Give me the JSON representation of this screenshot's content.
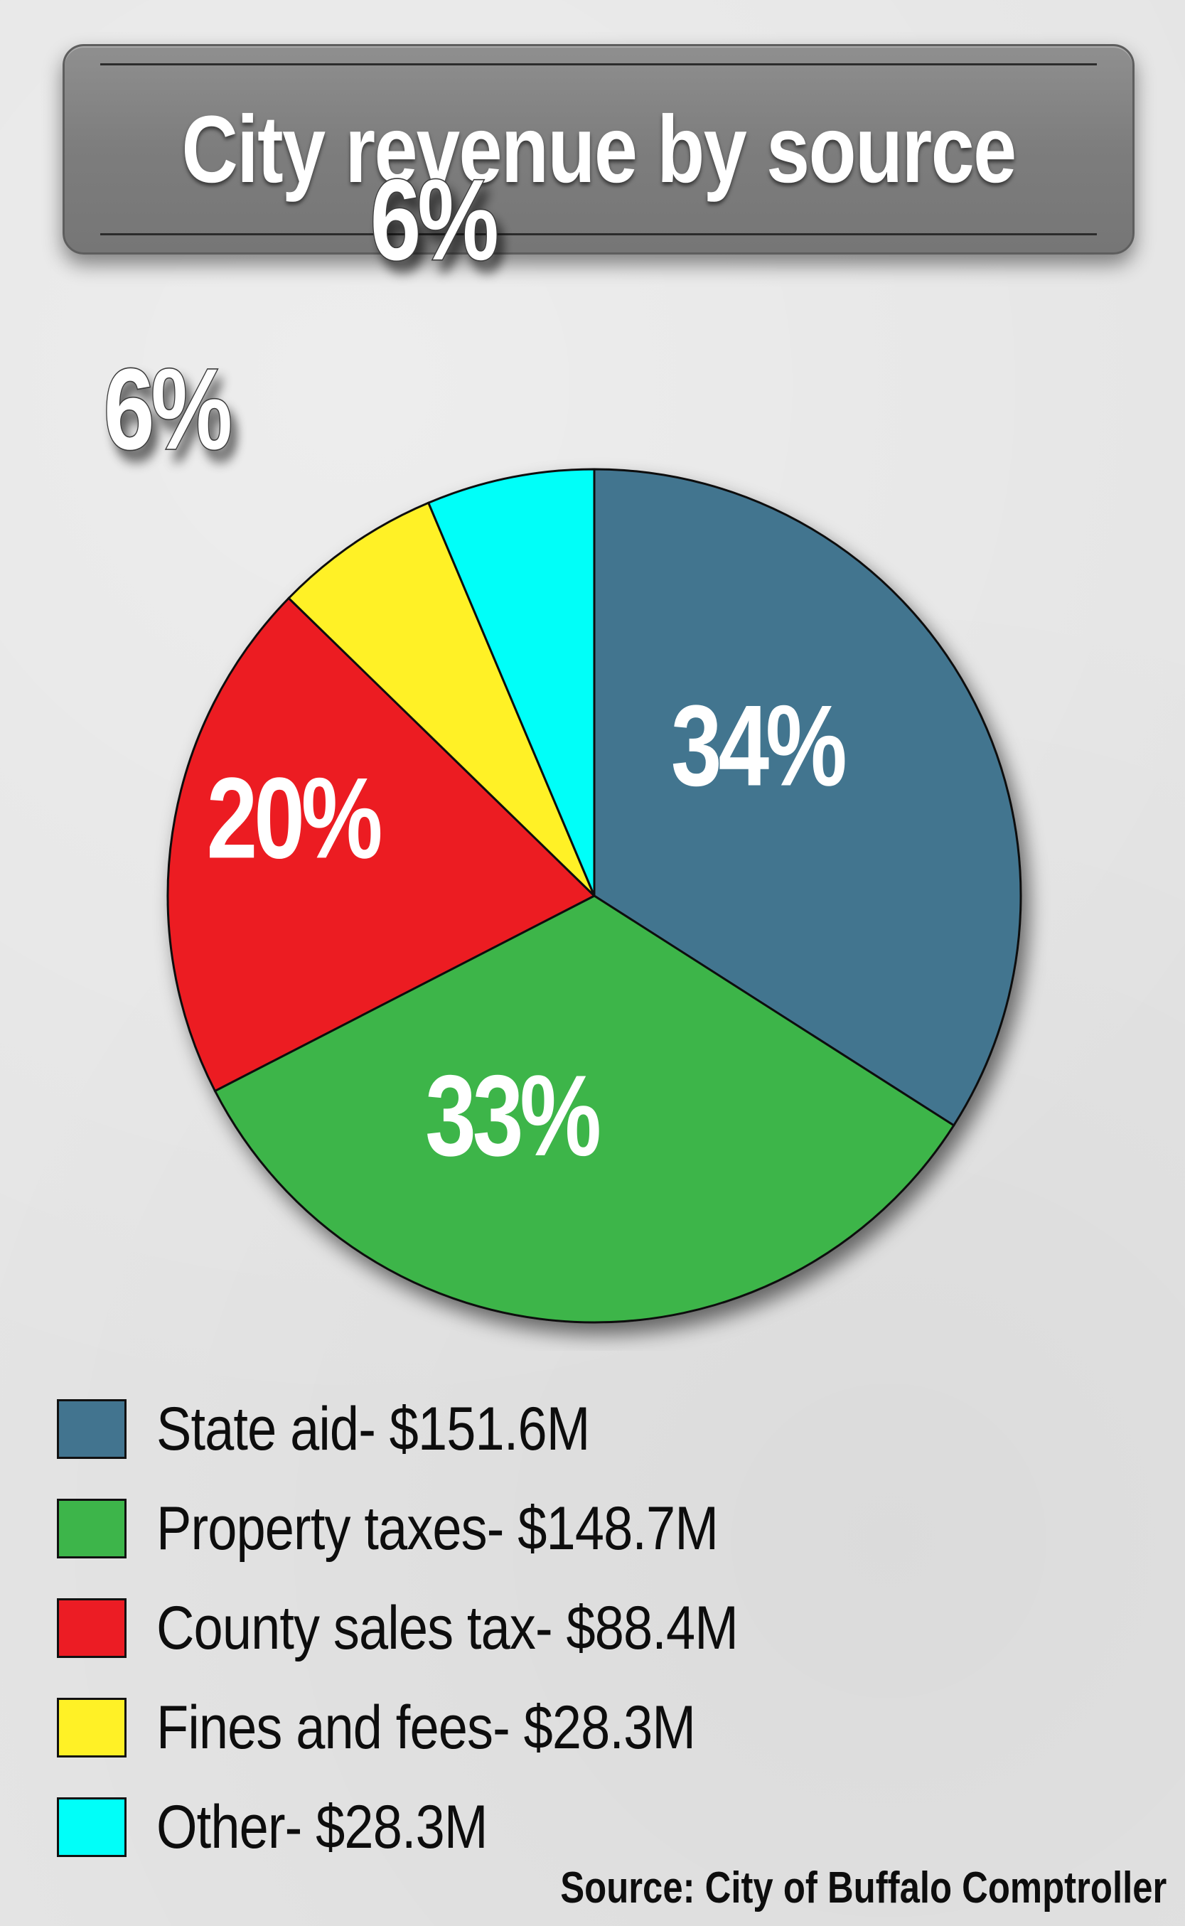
{
  "chart_data": {
    "type": "pie",
    "title": "City revenue by source",
    "slices": [
      {
        "label": "State aid",
        "amount": "$151.6M",
        "value": 151.6,
        "percent": 34,
        "percent_label": "34%",
        "color": "#42748f"
      },
      {
        "label": "Property taxes",
        "amount": "$148.7M",
        "value": 148.7,
        "percent": 33,
        "percent_label": "33%",
        "color": "#3db54a"
      },
      {
        "label": "County sales tax",
        "amount": "$88.4M",
        "value": 88.4,
        "percent": 20,
        "percent_label": "20%",
        "color": "#ec1c24"
      },
      {
        "label": "Fines and fees",
        "amount": "$28.3M",
        "value": 28.3,
        "percent": 6,
        "percent_label": "6%",
        "color": "#fff126"
      },
      {
        "label": "Other",
        "amount": "$28.3M",
        "value": 28.3,
        "percent": 6,
        "percent_label": "6%",
        "color": "#00fff9"
      }
    ],
    "legend_placement": "bottom",
    "source": "Source: City of Buffalo Comptroller"
  }
}
